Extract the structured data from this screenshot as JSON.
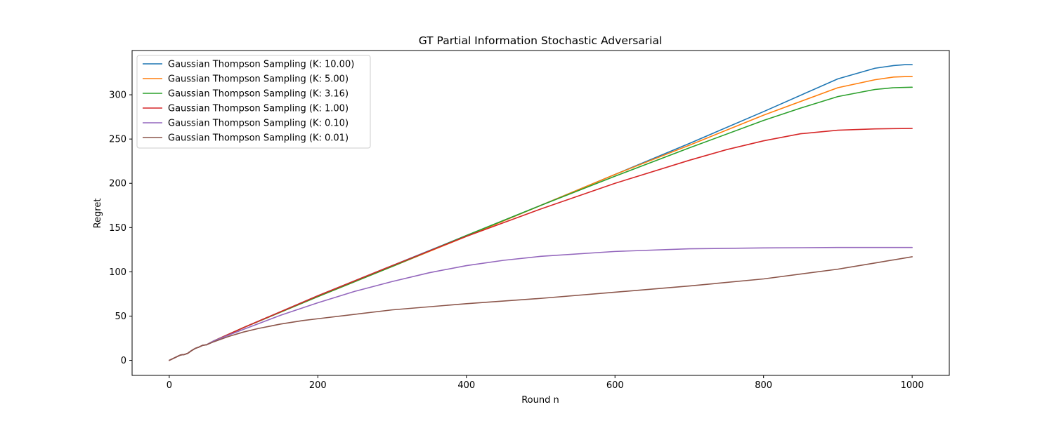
{
  "chart_data": {
    "type": "line",
    "title": "GT Partial Information Stochastic Adversarial",
    "xlabel": "Round n",
    "ylabel": "Regret",
    "xlim": [
      -50,
      1050
    ],
    "ylim": [
      -17,
      350
    ],
    "xticks": [
      0,
      200,
      400,
      600,
      800,
      1000
    ],
    "yticks": [
      0,
      50,
      100,
      150,
      200,
      250,
      300
    ],
    "grid": false,
    "legend_position": "top-left",
    "series": [
      {
        "name": "Gaussian Thompson Sampling (K: 10.00)",
        "color": "#1f77b4",
        "x": [
          0,
          10,
          15,
          20,
          25,
          30,
          35,
          40,
          45,
          50,
          60,
          100,
          200,
          300,
          400,
          500,
          600,
          700,
          800,
          900,
          950,
          975,
          990,
          1000
        ],
        "y": [
          0,
          4,
          6,
          6.5,
          8,
          11,
          13.5,
          15,
          17,
          17.5,
          22,
          37,
          73,
          107,
          141,
          175,
          210,
          245,
          281,
          318,
          330,
          333,
          334,
          334
        ]
      },
      {
        "name": "Gaussian Thompson Sampling (K: 5.00)",
        "color": "#ff7f0e",
        "x": [
          0,
          10,
          15,
          20,
          25,
          30,
          35,
          40,
          45,
          50,
          60,
          100,
          200,
          300,
          400,
          500,
          600,
          700,
          800,
          900,
          950,
          975,
          990,
          1000
        ],
        "y": [
          0,
          4,
          6,
          6.5,
          8,
          11,
          13.5,
          15,
          17,
          17.5,
          22,
          37,
          72,
          106,
          140,
          175,
          210,
          243,
          277,
          308,
          317,
          320,
          320.5,
          320.5
        ]
      },
      {
        "name": "Gaussian Thompson Sampling (K: 3.16)",
        "color": "#2ca02c",
        "x": [
          0,
          10,
          15,
          20,
          25,
          30,
          35,
          40,
          45,
          50,
          60,
          100,
          200,
          300,
          400,
          500,
          600,
          700,
          800,
          850,
          900,
          950,
          975,
          1000
        ],
        "y": [
          0,
          4,
          6,
          6.5,
          8,
          11,
          13.5,
          15,
          17,
          17.5,
          22,
          37,
          72,
          106,
          141,
          175,
          208,
          240,
          271,
          285,
          298,
          306,
          308,
          308.5
        ]
      },
      {
        "name": "Gaussian Thompson Sampling (K: 1.00)",
        "color": "#d62728",
        "x": [
          0,
          10,
          15,
          20,
          25,
          30,
          35,
          40,
          45,
          50,
          60,
          100,
          200,
          300,
          400,
          500,
          600,
          700,
          750,
          800,
          850,
          900,
          950,
          1000
        ],
        "y": [
          0,
          4,
          6,
          6.5,
          8,
          11,
          13.5,
          15,
          17,
          17.5,
          22,
          37,
          73,
          107,
          140,
          171,
          200,
          226,
          238,
          248,
          256,
          260,
          261.5,
          262
        ]
      },
      {
        "name": "Gaussian Thompson Sampling (K: 0.10)",
        "color": "#9467bd",
        "x": [
          0,
          10,
          15,
          20,
          25,
          30,
          35,
          40,
          45,
          50,
          60,
          100,
          150,
          200,
          250,
          300,
          350,
          400,
          450,
          500,
          600,
          700,
          800,
          900,
          1000
        ],
        "y": [
          0,
          4,
          6,
          6.5,
          8,
          11,
          13.5,
          15,
          17,
          17.5,
          22,
          35,
          51,
          65,
          78,
          89,
          99,
          107,
          113,
          117.5,
          123,
          126,
          127,
          127.5,
          127.5
        ]
      },
      {
        "name": "Gaussian Thompson Sampling (K: 0.01)",
        "color": "#8c564b",
        "x": [
          0,
          10,
          15,
          20,
          25,
          30,
          35,
          40,
          45,
          50,
          60,
          80,
          100,
          120,
          150,
          180,
          200,
          250,
          300,
          400,
          500,
          600,
          700,
          800,
          900,
          950,
          1000
        ],
        "y": [
          0,
          4,
          6,
          6.5,
          8,
          11,
          13.5,
          15,
          17,
          17.5,
          21,
          27,
          32,
          36,
          41,
          45,
          47,
          52,
          57,
          64,
          70,
          77,
          84,
          92,
          103,
          110,
          117
        ]
      }
    ]
  }
}
